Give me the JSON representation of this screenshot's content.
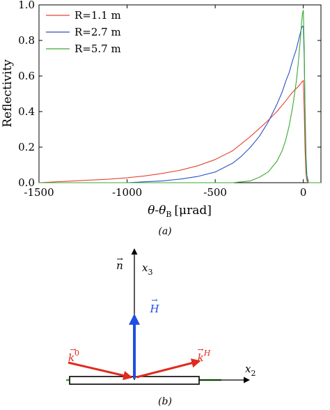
{
  "chart_data": [
    {
      "type": "line",
      "panel_label": "(a)",
      "xlabel_main": "θ-θ",
      "xlabel_sub": "B",
      "xlabel_unit": "[μrad]",
      "ylabel": "Reflectivity",
      "xlim": [
        -1500,
        100
      ],
      "ylim": [
        0,
        1.0
      ],
      "x_ticks": [
        -1500,
        -1000,
        -500,
        0
      ],
      "x_tick_labels": [
        "-1500",
        "-1000",
        "-500",
        "0"
      ],
      "y_ticks": [
        0,
        0.2,
        0.4,
        0.6,
        0.8,
        1.0
      ],
      "y_tick_labels": [
        "0.0",
        "0.2",
        "0.4",
        "0.6",
        "0.8",
        "1.0"
      ],
      "grid": false,
      "legend_position": "top-left",
      "series": [
        {
          "name": "R=1.1 m",
          "color": "#e8412f",
          "x": [
            -1500,
            -1300,
            -1100,
            -1000,
            -900,
            -800,
            -700,
            -600,
            -500,
            -400,
            -300,
            -200,
            -150,
            -100,
            -60,
            -40,
            -20,
            -10,
            0,
            5,
            10,
            15,
            20,
            30,
            50,
            100
          ],
          "y": [
            0.0,
            0.01,
            0.02,
            0.028,
            0.038,
            0.052,
            0.07,
            0.095,
            0.13,
            0.18,
            0.26,
            0.35,
            0.4,
            0.46,
            0.51,
            0.53,
            0.55,
            0.565,
            0.575,
            0.4,
            0.18,
            0.05,
            0.01,
            0.0,
            0.0,
            0.0
          ]
        },
        {
          "name": "R=2.7 m",
          "color": "#2c4fc8",
          "x": [
            -1500,
            -1000,
            -800,
            -700,
            -600,
            -500,
            -400,
            -350,
            -300,
            -250,
            -200,
            -150,
            -120,
            -100,
            -80,
            -60,
            -40,
            -30,
            -20,
            -10,
            -5,
            0,
            5,
            10,
            15,
            20,
            30,
            50,
            100
          ],
          "y": [
            0.0,
            0.0,
            0.01,
            0.02,
            0.035,
            0.06,
            0.11,
            0.15,
            0.2,
            0.26,
            0.34,
            0.44,
            0.51,
            0.57,
            0.62,
            0.69,
            0.75,
            0.79,
            0.83,
            0.87,
            0.88,
            0.88,
            0.7,
            0.4,
            0.15,
            0.04,
            0.0,
            0.0,
            0.0
          ]
        },
        {
          "name": "R=5.7 m",
          "color": "#3aa830",
          "x": [
            -1500,
            -500,
            -400,
            -300,
            -250,
            -200,
            -150,
            -120,
            -100,
            -80,
            -60,
            -40,
            -30,
            -20,
            -15,
            -10,
            -5,
            0,
            5,
            10,
            15,
            20,
            30,
            50,
            100
          ],
          "y": [
            0.0,
            0.0,
            0.0,
            0.01,
            0.03,
            0.06,
            0.12,
            0.18,
            0.24,
            0.32,
            0.43,
            0.57,
            0.66,
            0.77,
            0.83,
            0.9,
            0.95,
            0.97,
            0.75,
            0.35,
            0.1,
            0.02,
            0.0,
            0.0,
            0.0
          ]
        }
      ]
    },
    {
      "type": "diagram",
      "panel_label": "(b)",
      "axis_n_label": "n",
      "axis_x3_main": "x",
      "axis_x3_sub": "3",
      "axis_x2_main": "x",
      "axis_x2_sub": "2",
      "vector_H": "H",
      "vector_k0_main": "k",
      "vector_k0_sup": "0",
      "vector_kH_main": "k",
      "vector_kH_sup": "H",
      "colors": {
        "H": "#1f4fe0",
        "k": "#e02a1e",
        "surface": "#3aa830",
        "axes": "#000000"
      }
    }
  ]
}
